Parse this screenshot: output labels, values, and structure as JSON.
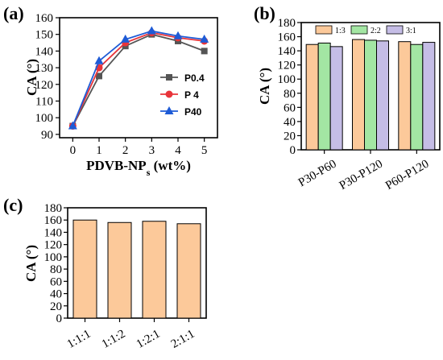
{
  "panels": {
    "a": {
      "label": "(a)"
    },
    "b": {
      "label": "(b)"
    },
    "c": {
      "label": "(c)"
    }
  },
  "colors": {
    "P0.4": "#555555",
    "P 4": "#e8343a",
    "P40": "#1e5bd6",
    "1:3": "#fcc99a",
    "2:2": "#a3e6a3",
    "3:1": "#c5bde6"
  },
  "chart_data": [
    {
      "type": "line",
      "xlabel_main": "PDVB-NP",
      "xlabel_sub": "s",
      "xlabel_unit": " (wt%)",
      "ylabel": "CA (°)",
      "x": [
        0,
        1,
        2,
        3,
        4,
        5
      ],
      "xlim": [
        -0.5,
        5.5
      ],
      "ylim": [
        88,
        160
      ],
      "yticks": [
        90,
        100,
        110,
        120,
        130,
        140,
        150,
        160
      ],
      "legend_position": "right",
      "series": [
        {
          "name": "P0.4",
          "values": [
            95,
            125,
            143,
            150,
            146,
            140
          ],
          "marker": "square"
        },
        {
          "name": "P 4",
          "values": [
            95,
            130,
            145,
            151,
            148,
            146
          ],
          "marker": "circle"
        },
        {
          "name": "P40",
          "values": [
            95,
            134,
            147,
            152,
            149,
            147
          ],
          "marker": "triangle"
        }
      ]
    },
    {
      "type": "bar",
      "ylabel": "CA (°)",
      "categories": [
        "P30-P60",
        "P30-P120",
        "P60-P120"
      ],
      "ylim": [
        0,
        180
      ],
      "yticks": [
        0,
        20,
        40,
        60,
        80,
        100,
        120,
        140,
        160,
        180
      ],
      "legend_position": "top",
      "series": [
        {
          "name": "1:3",
          "values": [
            149,
            156,
            153
          ]
        },
        {
          "name": "2:2",
          "values": [
            151,
            155,
            149
          ]
        },
        {
          "name": "3:1",
          "values": [
            146,
            154,
            152
          ]
        }
      ]
    },
    {
      "type": "bar",
      "ylabel": "CA (°)",
      "categories": [
        "1:1:1",
        "1:1:2",
        "1:2:1",
        "2:1:1"
      ],
      "ylim": [
        0,
        180
      ],
      "yticks": [
        0,
        20,
        40,
        60,
        80,
        100,
        120,
        140,
        160,
        180
      ],
      "values": [
        160,
        156,
        158,
        154
      ]
    }
  ]
}
